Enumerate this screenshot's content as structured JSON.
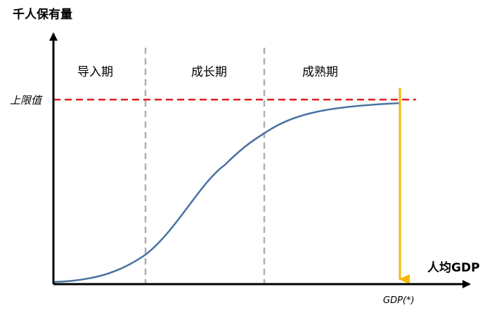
{
  "diagram": {
    "y_axis_label": "千人保有量",
    "x_axis_label": "人均GDP",
    "upper_limit_label": "上限值",
    "gdp_marker_label": "GDP(*)",
    "phases": [
      {
        "label": "导入期"
      },
      {
        "label": "成长期"
      },
      {
        "label": "成熟期"
      }
    ],
    "colors": {
      "axis": "#000000",
      "curve": "#4a72a0",
      "limit_line": "#e21b1b",
      "phase_divider": "#b0b0b0",
      "gdp_arrow": "#f5b800"
    }
  }
}
